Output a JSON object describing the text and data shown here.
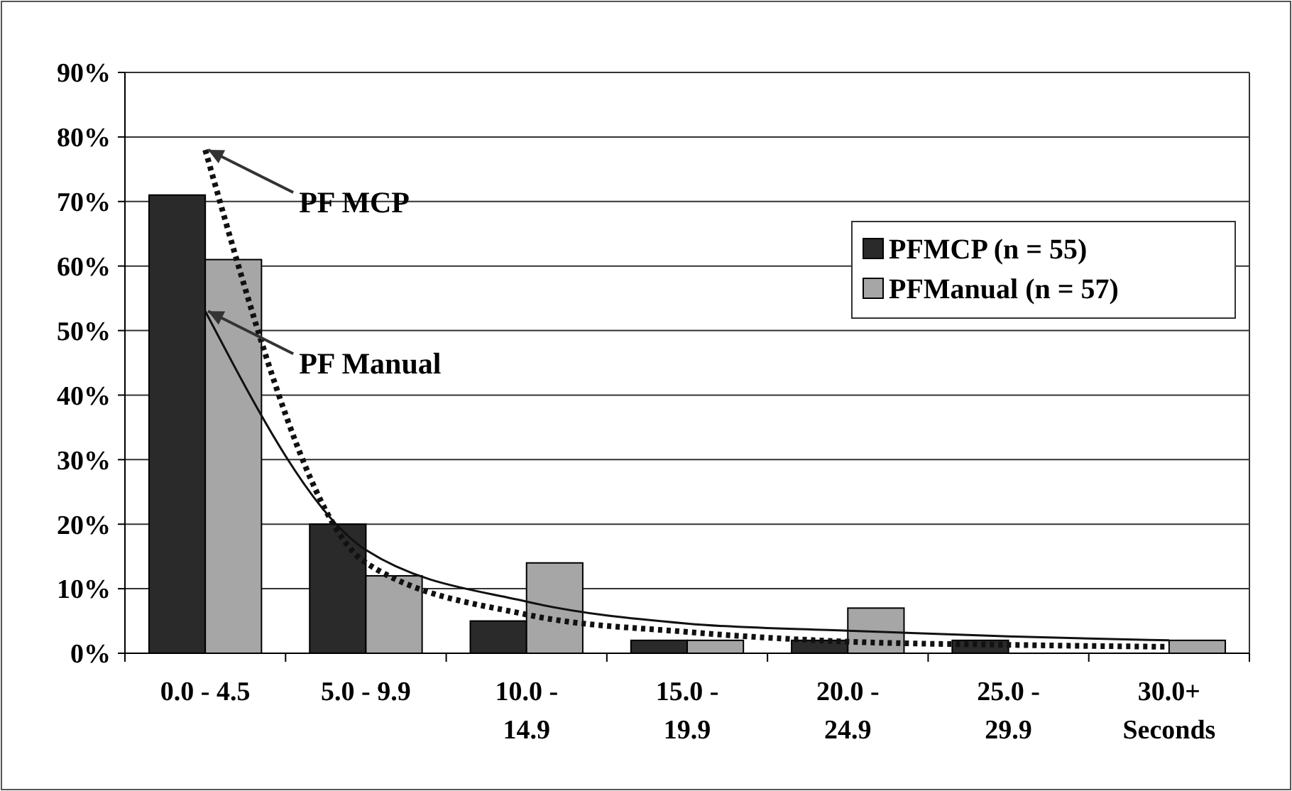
{
  "chart_data": {
    "type": "bar",
    "categories": [
      "0.0 - 4.5",
      "5.0 - 9.9",
      "10.0 - 14.9",
      "15.0 - 19.9",
      "20.0 - 24.9",
      "25.0 - 29.9",
      "30.0+ Seconds"
    ],
    "series": [
      {
        "name": "PFMCP (n = 55)",
        "color": "#2a2a2a",
        "values": [
          71,
          20,
          5,
          2,
          2,
          2,
          0
        ]
      },
      {
        "name": "PFManual (n = 57)",
        "color": "#a6a6a6",
        "values": [
          61,
          12,
          14,
          2,
          7,
          0,
          2
        ]
      },
      {
        "type": "line",
        "color": "#111111",
        "line_style": "dotted",
        "values": [
          78,
          14,
          6,
          3.3,
          1.8,
          1.3,
          1
        ]
      },
      {
        "type": "line",
        "color": "#111111",
        "line_style": "solid",
        "values": [
          53,
          16,
          8,
          4.6,
          3.5,
          2.6,
          2
        ]
      }
    ],
    "annotations": [
      {
        "text": "PF MCP",
        "x": "0.0 - 4.5",
        "y": 78
      },
      {
        "text": "PF Manual",
        "x": "0.0 - 4.5",
        "y": 53
      }
    ],
    "ylim": [
      0,
      90
    ],
    "yticks": [
      {
        "value": 0,
        "label": "0%"
      },
      {
        "value": 10,
        "label": "10%"
      },
      {
        "value": 20,
        "label": "20%"
      },
      {
        "value": 30,
        "label": "30%"
      },
      {
        "value": 40,
        "label": "40%"
      },
      {
        "value": 50,
        "label": "50%"
      },
      {
        "value": 60,
        "label": "60%"
      },
      {
        "value": 70,
        "label": "70%"
      },
      {
        "value": 80,
        "label": "80%"
      },
      {
        "value": 90,
        "label": "90%"
      }
    ],
    "grid": "y",
    "legend": "top right",
    "marker": "none"
  }
}
